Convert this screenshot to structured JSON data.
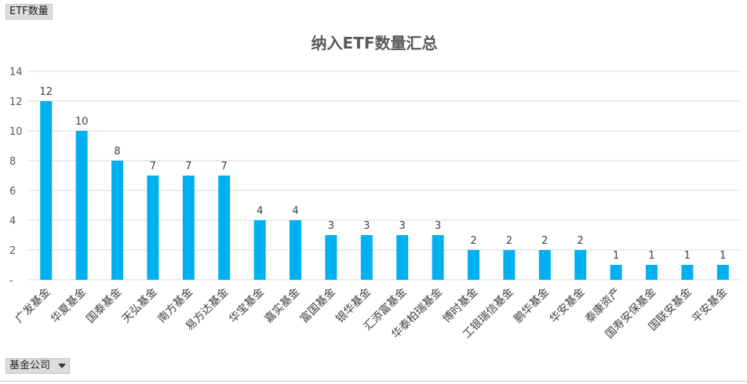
{
  "pivot": {
    "value_field": "ETF数量",
    "row_field": "基金公司"
  },
  "colors": {
    "bar": "#00b0f0",
    "grid": "#d9d9d9",
    "text": "#595959"
  },
  "chart_data": {
    "type": "bar",
    "title": "纳入ETF数量汇总",
    "categories": [
      "广发基金",
      "华夏基金",
      "国泰基金",
      "天弘基金",
      "南方基金",
      "易方达基金",
      "华宝基金",
      "嘉实基金",
      "富国基金",
      "银华基金",
      "汇添富基金",
      "华泰柏瑞基金",
      "博时基金",
      "工银瑞信基金",
      "鹏华基金",
      "华安基金",
      "泰康资产",
      "国寿安保基金",
      "国联安基金",
      "平安基金"
    ],
    "values": [
      12,
      10,
      8,
      7,
      7,
      7,
      4,
      4,
      3,
      3,
      3,
      3,
      2,
      2,
      2,
      2,
      1,
      1,
      1,
      1
    ],
    "yticks": [
      "-",
      "2",
      "4",
      "6",
      "8",
      "10",
      "12",
      "14"
    ],
    "ylim": [
      0,
      14
    ],
    "grid": true,
    "legend": "none"
  }
}
